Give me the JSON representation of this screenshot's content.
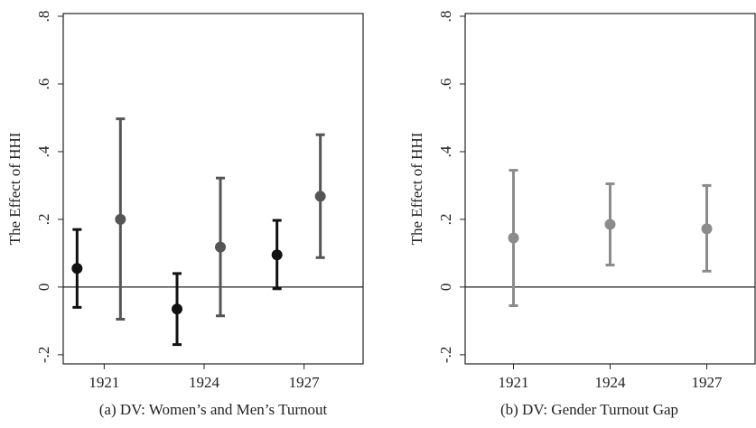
{
  "chart_data": [
    {
      "type": "errorbar",
      "title": "(a) DV: Women’s and Men’s Turnout",
      "y_label": "The Effect of HHI",
      "categories": [
        "1921",
        "1924",
        "1927"
      ],
      "series": [
        {
          "color": "#111111",
          "values": [
            0.055,
            -0.065,
            0.095
          ],
          "lower": [
            -0.06,
            -0.17,
            -0.005
          ],
          "upper": [
            0.17,
            0.04,
            0.197
          ]
        },
        {
          "color": "#555555",
          "values": [
            0.2,
            0.118,
            0.268
          ],
          "lower": [
            -0.095,
            -0.085,
            0.087
          ],
          "upper": [
            0.497,
            0.322,
            0.45
          ]
        }
      ],
      "ylim": [
        -0.227,
        0.808
      ],
      "yticks": [
        {
          "value": -0.2,
          "label": "-.2"
        },
        0,
        {
          "value": 0.2,
          "label": ".2"
        },
        {
          "value": 0.4,
          "label": ".4"
        },
        {
          "value": 0.6,
          "label": ".6"
        },
        {
          "value": 0.8,
          "label": ".8"
        }
      ],
      "reference_line": 0
    },
    {
      "type": "errorbar",
      "title": "(b) DV: Gender Turnout Gap",
      "y_label": "The Effect of HHI",
      "categories": [
        "1921",
        "1924",
        "1927"
      ],
      "series": [
        {
          "color": "#8c8c8c",
          "values": [
            0.145,
            0.185,
            0.172
          ],
          "lower": [
            -0.055,
            0.065,
            0.047
          ],
          "upper": [
            0.345,
            0.305,
            0.3
          ]
        }
      ],
      "ylim": [
        -0.227,
        0.808
      ],
      "yticks": [
        {
          "value": -0.2,
          "label": "-.2"
        },
        0,
        {
          "value": 0.2,
          "label": ".2"
        },
        {
          "value": 0.4,
          "label": ".4"
        },
        {
          "value": 0.6,
          "label": ".6"
        },
        {
          "value": 0.8,
          "label": ".8"
        }
      ],
      "reference_line": 0
    }
  ]
}
